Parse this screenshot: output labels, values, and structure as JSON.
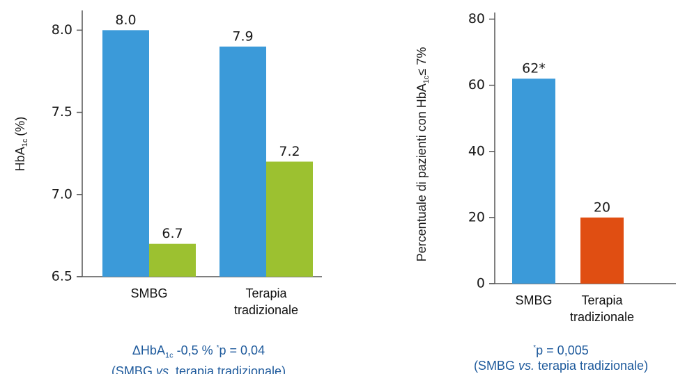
{
  "chart_data": [
    {
      "type": "bar",
      "y_label": {
        "text": "HbA",
        "sub": "1c",
        "suffix": "(%)"
      },
      "categories": [
        "SMBG",
        "Terapia tradizionale"
      ],
      "series": [
        {
          "color": "#3b9ad9",
          "values": [
            8.0,
            7.9
          ],
          "value_labels": [
            "8.0",
            "7.9"
          ]
        },
        {
          "color": "#9cc130",
          "values": [
            6.7,
            7.2
          ],
          "value_labels": [
            "6.7",
            "7.2"
          ]
        }
      ],
      "ylim": [
        6.5,
        8.12
      ],
      "yticks": [
        6.5,
        {
          "value": 7,
          "label": "7.0"
        },
        7.5,
        {
          "value": 8,
          "label": "8.0"
        }
      ],
      "grid": false,
      "note": {
        "lead": "ΔHbA",
        "sub": "1c",
        "change": "-0,5 %",
        "star": "*",
        "p": "p = 0,04",
        "compare": [
          "(SMBG",
          "vs.",
          "terapia tradizionale)"
        ]
      }
    },
    {
      "type": "bar",
      "y_label": {
        "text": "Percentuale di pazienti con HbA",
        "sub": "1c",
        "suffix": "≤ 7%"
      },
      "categories": [
        "SMBG",
        "Terapia tradizionale"
      ],
      "values": [
        62,
        20
      ],
      "value_labels": [
        "62*",
        "20"
      ],
      "colors": [
        "#3b9ad9",
        "#e04e12"
      ],
      "ylim": [
        0,
        82
      ],
      "yticks": [
        0,
        20,
        40,
        60,
        80
      ],
      "grid": false,
      "note": {
        "star": "*",
        "p": "p = 0,005",
        "compare": [
          "(SMBG",
          "vs.",
          "terapia tradizionale)"
        ]
      }
    }
  ]
}
